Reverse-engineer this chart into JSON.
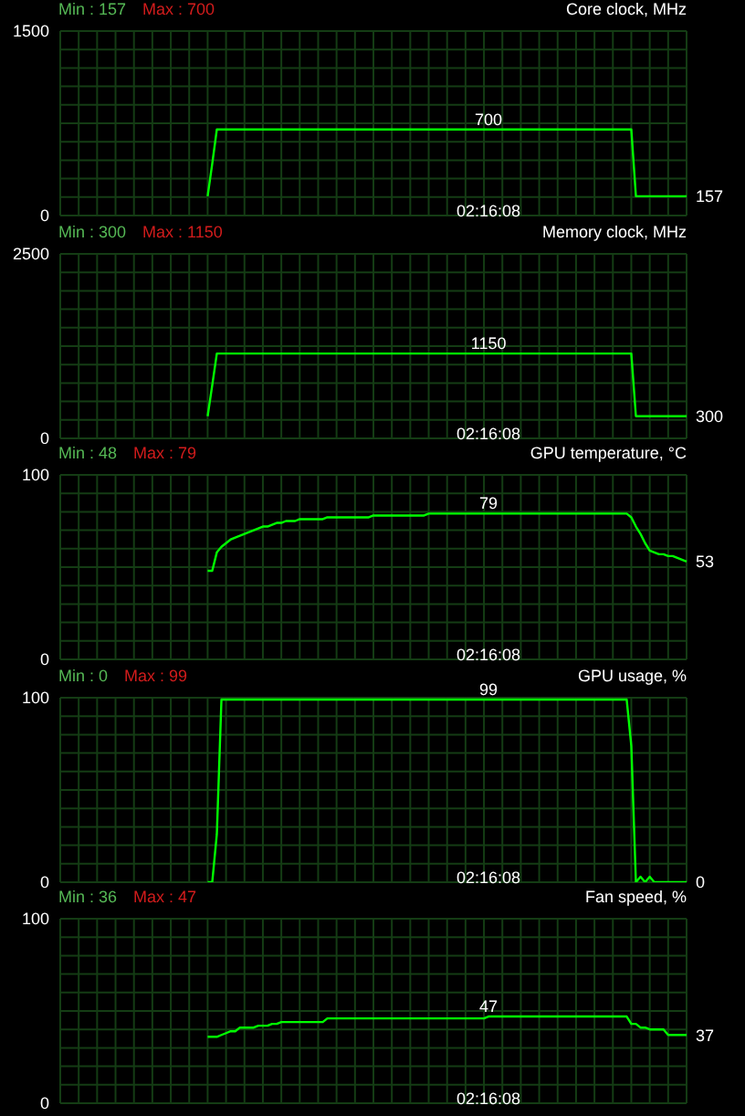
{
  "chart_data": [
    {
      "type": "line",
      "title": "Core clock, MHz",
      "annotations": [
        "Min : 157",
        "Max : 700"
      ],
      "categories": [
        null,
        null,
        null,
        null,
        null,
        null,
        null,
        null,
        null,
        null,
        null,
        null,
        null,
        null,
        null,
        null,
        null,
        null,
        null,
        null,
        null,
        null,
        null,
        null,
        null,
        null,
        null,
        null,
        null,
        null,
        null,
        null,
        null,
        null,
        null,
        null,
        null,
        null,
        null,
        null,
        null,
        null,
        null,
        null,
        null,
        null,
        null,
        null,
        null,
        null,
        null,
        null,
        null,
        null,
        null,
        null,
        null,
        null,
        null,
        null,
        null,
        null,
        null,
        null,
        null,
        null,
        null,
        null,
        null,
        null,
        null,
        null,
        null,
        null,
        null,
        null,
        null,
        null,
        null,
        null,
        null,
        null,
        null,
        null,
        null,
        null,
        null,
        null,
        null,
        null,
        null,
        null,
        null,
        "02:16:08",
        null,
        null,
        null,
        null,
        null,
        null,
        null,
        null,
        null,
        null,
        null,
        null,
        null,
        null,
        null,
        null,
        null,
        null,
        null,
        null,
        null,
        null,
        null,
        null,
        null,
        null,
        null,
        null,
        null,
        null,
        null,
        null,
        null,
        null,
        null,
        null,
        null,
        null,
        null,
        null,
        null,
        null,
        null
      ],
      "series": [
        {
          "color": "#00ff00",
          "values": [
            null,
            null,
            null,
            null,
            null,
            null,
            null,
            null,
            null,
            null,
            null,
            null,
            null,
            null,
            null,
            null,
            null,
            null,
            null,
            null,
            null,
            null,
            null,
            null,
            null,
            null,
            null,
            null,
            null,
            null,
            null,
            null,
            157,
            420,
            700,
            700,
            700,
            700,
            700,
            700,
            700,
            700,
            700,
            700,
            700,
            700,
            700,
            700,
            700,
            700,
            700,
            700,
            700,
            700,
            700,
            700,
            700,
            700,
            700,
            700,
            700,
            700,
            700,
            700,
            700,
            700,
            700,
            700,
            700,
            700,
            700,
            700,
            700,
            700,
            700,
            700,
            700,
            700,
            700,
            700,
            700,
            700,
            700,
            700,
            700,
            700,
            700,
            700,
            700,
            700,
            700,
            700,
            700,
            700,
            700,
            700,
            700,
            700,
            700,
            700,
            700,
            700,
            700,
            700,
            700,
            700,
            700,
            700,
            700,
            700,
            700,
            700,
            700,
            700,
            700,
            700,
            700,
            700,
            700,
            700,
            700,
            700,
            700,
            700,
            700,
            157,
            157,
            157,
            157,
            157,
            157,
            157,
            157,
            157,
            157,
            157,
            157
          ],
          "value_labels": [
            null,
            null,
            null,
            null,
            null,
            null,
            null,
            null,
            null,
            null,
            null,
            null,
            null,
            null,
            null,
            null,
            null,
            null,
            null,
            null,
            null,
            null,
            null,
            null,
            null,
            null,
            null,
            null,
            null,
            null,
            null,
            null,
            null,
            null,
            null,
            null,
            null,
            null,
            null,
            null,
            null,
            null,
            null,
            null,
            null,
            null,
            null,
            null,
            null,
            null,
            null,
            null,
            null,
            null,
            null,
            null,
            null,
            null,
            null,
            null,
            null,
            null,
            null,
            null,
            null,
            null,
            null,
            null,
            null,
            null,
            null,
            null,
            null,
            null,
            null,
            null,
            null,
            null,
            null,
            null,
            null,
            null,
            null,
            null,
            null,
            null,
            null,
            null,
            null,
            null,
            null,
            null,
            null,
            "700",
            null,
            null,
            null,
            null,
            null,
            null,
            null,
            null,
            null,
            null,
            null,
            null,
            null,
            null,
            null,
            null,
            null,
            null,
            null,
            null,
            null,
            null,
            null,
            null,
            null,
            null,
            null,
            null,
            null,
            null,
            null,
            null,
            null,
            null,
            null,
            null,
            null,
            null,
            null,
            null,
            null,
            null,
            "157"
          ]
        }
      ],
      "ylim": [
        0,
        1500
      ],
      "yticks": [
        0,
        {
          "value": 150,
          "label": null
        },
        {
          "value": 300,
          "label": null
        },
        {
          "value": 450,
          "label": null
        },
        {
          "value": 600,
          "label": null
        },
        {
          "value": 750,
          "label": null
        },
        {
          "value": 900,
          "label": null
        },
        {
          "value": 1050,
          "label": null
        },
        {
          "value": 1200,
          "label": null
        },
        {
          "value": 1350,
          "label": null
        },
        1500
      ],
      "grid": true
    },
    {
      "type": "line",
      "title": "Memory clock, MHz",
      "annotations": [
        "Min : 300",
        "Max : 1150"
      ],
      "categories": [
        null,
        null,
        null,
        null,
        null,
        null,
        null,
        null,
        null,
        null,
        null,
        null,
        null,
        null,
        null,
        null,
        null,
        null,
        null,
        null,
        null,
        null,
        null,
        null,
        null,
        null,
        null,
        null,
        null,
        null,
        null,
        null,
        null,
        null,
        null,
        null,
        null,
        null,
        null,
        null,
        null,
        null,
        null,
        null,
        null,
        null,
        null,
        null,
        null,
        null,
        null,
        null,
        null,
        null,
        null,
        null,
        null,
        null,
        null,
        null,
        null,
        null,
        null,
        null,
        null,
        null,
        null,
        null,
        null,
        null,
        null,
        null,
        null,
        null,
        null,
        null,
        null,
        null,
        null,
        null,
        null,
        null,
        null,
        null,
        null,
        null,
        null,
        null,
        null,
        null,
        null,
        null,
        null,
        "02:16:08",
        null,
        null,
        null,
        null,
        null,
        null,
        null,
        null,
        null,
        null,
        null,
        null,
        null,
        null,
        null,
        null,
        null,
        null,
        null,
        null,
        null,
        null,
        null,
        null,
        null,
        null,
        null,
        null,
        null,
        null,
        null,
        null,
        null,
        null,
        null,
        null,
        null,
        null,
        null,
        null,
        null,
        null,
        null
      ],
      "series": [
        {
          "color": "#00ff00",
          "values": [
            null,
            null,
            null,
            null,
            null,
            null,
            null,
            null,
            null,
            null,
            null,
            null,
            null,
            null,
            null,
            null,
            null,
            null,
            null,
            null,
            null,
            null,
            null,
            null,
            null,
            null,
            null,
            null,
            null,
            null,
            null,
            null,
            300,
            720,
            1150,
            1150,
            1150,
            1150,
            1150,
            1150,
            1150,
            1150,
            1150,
            1150,
            1150,
            1150,
            1150,
            1150,
            1150,
            1150,
            1150,
            1150,
            1150,
            1150,
            1150,
            1150,
            1150,
            1150,
            1150,
            1150,
            1150,
            1150,
            1150,
            1150,
            1150,
            1150,
            1150,
            1150,
            1150,
            1150,
            1150,
            1150,
            1150,
            1150,
            1150,
            1150,
            1150,
            1150,
            1150,
            1150,
            1150,
            1150,
            1150,
            1150,
            1150,
            1150,
            1150,
            1150,
            1150,
            1150,
            1150,
            1150,
            1150,
            1150,
            1150,
            1150,
            1150,
            1150,
            1150,
            1150,
            1150,
            1150,
            1150,
            1150,
            1150,
            1150,
            1150,
            1150,
            1150,
            1150,
            1150,
            1150,
            1150,
            1150,
            1150,
            1150,
            1150,
            1150,
            1150,
            1150,
            1150,
            1150,
            1150,
            1150,
            1150,
            300,
            300,
            300,
            300,
            300,
            300,
            300,
            300,
            300,
            300,
            300,
            300
          ],
          "value_labels": [
            null,
            null,
            null,
            null,
            null,
            null,
            null,
            null,
            null,
            null,
            null,
            null,
            null,
            null,
            null,
            null,
            null,
            null,
            null,
            null,
            null,
            null,
            null,
            null,
            null,
            null,
            null,
            null,
            null,
            null,
            null,
            null,
            null,
            null,
            null,
            null,
            null,
            null,
            null,
            null,
            null,
            null,
            null,
            null,
            null,
            null,
            null,
            null,
            null,
            null,
            null,
            null,
            null,
            null,
            null,
            null,
            null,
            null,
            null,
            null,
            null,
            null,
            null,
            null,
            null,
            null,
            null,
            null,
            null,
            null,
            null,
            null,
            null,
            null,
            null,
            null,
            null,
            null,
            null,
            null,
            null,
            null,
            null,
            null,
            null,
            null,
            null,
            null,
            null,
            null,
            null,
            null,
            null,
            "1150",
            null,
            null,
            null,
            null,
            null,
            null,
            null,
            null,
            null,
            null,
            null,
            null,
            null,
            null,
            null,
            null,
            null,
            null,
            null,
            null,
            null,
            null,
            null,
            null,
            null,
            null,
            null,
            null,
            null,
            null,
            null,
            null,
            null,
            null,
            null,
            null,
            null,
            null,
            null,
            null,
            null,
            null,
            "300"
          ]
        }
      ],
      "ylim": [
        0,
        2500
      ],
      "yticks": [
        0,
        {
          "value": 250,
          "label": null
        },
        {
          "value": 500,
          "label": null
        },
        {
          "value": 750,
          "label": null
        },
        {
          "value": 1000,
          "label": null
        },
        {
          "value": 1250,
          "label": null
        },
        {
          "value": 1500,
          "label": null
        },
        {
          "value": 1750,
          "label": null
        },
        {
          "value": 2000,
          "label": null
        },
        {
          "value": 2250,
          "label": null
        },
        2500
      ],
      "grid": true
    },
    {
      "type": "line",
      "title": "GPU temperature, °C",
      "annotations": [
        "Min : 48",
        "Max : 79"
      ],
      "categories": [
        null,
        null,
        null,
        null,
        null,
        null,
        null,
        null,
        null,
        null,
        null,
        null,
        null,
        null,
        null,
        null,
        null,
        null,
        null,
        null,
        null,
        null,
        null,
        null,
        null,
        null,
        null,
        null,
        null,
        null,
        null,
        null,
        null,
        null,
        null,
        null,
        null,
        null,
        null,
        null,
        null,
        null,
        null,
        null,
        null,
        null,
        null,
        null,
        null,
        null,
        null,
        null,
        null,
        null,
        null,
        null,
        null,
        null,
        null,
        null,
        null,
        null,
        null,
        null,
        null,
        null,
        null,
        null,
        null,
        null,
        null,
        null,
        null,
        null,
        null,
        null,
        null,
        null,
        null,
        null,
        null,
        null,
        null,
        null,
        null,
        null,
        null,
        null,
        null,
        null,
        null,
        null,
        null,
        "02:16:08",
        null,
        null,
        null,
        null,
        null,
        null,
        null,
        null,
        null,
        null,
        null,
        null,
        null,
        null,
        null,
        null,
        null,
        null,
        null,
        null,
        null,
        null,
        null,
        null,
        null,
        null,
        null,
        null,
        null,
        null,
        null,
        null,
        null,
        null,
        null,
        null,
        null,
        null,
        null,
        null,
        null,
        null,
        null
      ],
      "series": [
        {
          "color": "#00ff00",
          "values": [
            null,
            null,
            null,
            null,
            null,
            null,
            null,
            null,
            null,
            null,
            null,
            null,
            null,
            null,
            null,
            null,
            null,
            null,
            null,
            null,
            null,
            null,
            null,
            null,
            null,
            null,
            null,
            null,
            null,
            null,
            null,
            null,
            48,
            48,
            58,
            61,
            63,
            65,
            66,
            67,
            68,
            69,
            70,
            71,
            72,
            72,
            73,
            74,
            74,
            75,
            75,
            75,
            76,
            76,
            76,
            76,
            76,
            76,
            77,
            77,
            77,
            77,
            77,
            77,
            77,
            77,
            77,
            77,
            78,
            78,
            78,
            78,
            78,
            78,
            78,
            78,
            78,
            78,
            78,
            78,
            79,
            79,
            79,
            79,
            79,
            79,
            79,
            79,
            79,
            79,
            79,
            79,
            79,
            79,
            79,
            79,
            79,
            79,
            79,
            79,
            79,
            79,
            79,
            79,
            79,
            79,
            79,
            79,
            79,
            79,
            79,
            79,
            79,
            79,
            79,
            79,
            79,
            79,
            79,
            79,
            79,
            79,
            79,
            79,
            77,
            72,
            68,
            63,
            59,
            58,
            57,
            57,
            56,
            56,
            55,
            54,
            53
          ],
          "value_labels": [
            null,
            null,
            null,
            null,
            null,
            null,
            null,
            null,
            null,
            null,
            null,
            null,
            null,
            null,
            null,
            null,
            null,
            null,
            null,
            null,
            null,
            null,
            null,
            null,
            null,
            null,
            null,
            null,
            null,
            null,
            null,
            null,
            null,
            null,
            null,
            null,
            null,
            null,
            null,
            null,
            null,
            null,
            null,
            null,
            null,
            null,
            null,
            null,
            null,
            null,
            null,
            null,
            null,
            null,
            null,
            null,
            null,
            null,
            null,
            null,
            null,
            null,
            null,
            null,
            null,
            null,
            null,
            null,
            null,
            null,
            null,
            null,
            null,
            null,
            null,
            null,
            null,
            null,
            null,
            null,
            null,
            null,
            null,
            null,
            null,
            null,
            null,
            null,
            null,
            null,
            null,
            null,
            null,
            "79",
            null,
            null,
            null,
            null,
            null,
            null,
            null,
            null,
            null,
            null,
            null,
            null,
            null,
            null,
            null,
            null,
            null,
            null,
            null,
            null,
            null,
            null,
            null,
            null,
            null,
            null,
            null,
            null,
            null,
            null,
            null,
            null,
            null,
            null,
            null,
            null,
            null,
            null,
            null,
            null,
            null,
            null,
            "53"
          ]
        }
      ],
      "ylim": [
        0,
        100
      ],
      "yticks": [
        0,
        {
          "value": 10,
          "label": null
        },
        {
          "value": 20,
          "label": null
        },
        {
          "value": 30,
          "label": null
        },
        {
          "value": 40,
          "label": null
        },
        {
          "value": 50,
          "label": null
        },
        {
          "value": 60,
          "label": null
        },
        {
          "value": 70,
          "label": null
        },
        {
          "value": 80,
          "label": null
        },
        {
          "value": 90,
          "label": null
        },
        100
      ],
      "grid": true
    },
    {
      "type": "line",
      "title": "GPU usage, %",
      "annotations": [
        "Min : 0",
        "Max : 99"
      ],
      "categories": [
        null,
        null,
        null,
        null,
        null,
        null,
        null,
        null,
        null,
        null,
        null,
        null,
        null,
        null,
        null,
        null,
        null,
        null,
        null,
        null,
        null,
        null,
        null,
        null,
        null,
        null,
        null,
        null,
        null,
        null,
        null,
        null,
        null,
        null,
        null,
        null,
        null,
        null,
        null,
        null,
        null,
        null,
        null,
        null,
        null,
        null,
        null,
        null,
        null,
        null,
        null,
        null,
        null,
        null,
        null,
        null,
        null,
        null,
        null,
        null,
        null,
        null,
        null,
        null,
        null,
        null,
        null,
        null,
        null,
        null,
        null,
        null,
        null,
        null,
        null,
        null,
        null,
        null,
        null,
        null,
        null,
        null,
        null,
        null,
        null,
        null,
        null,
        null,
        null,
        null,
        null,
        null,
        null,
        "02:16:08",
        null,
        null,
        null,
        null,
        null,
        null,
        null,
        null,
        null,
        null,
        null,
        null,
        null,
        null,
        null,
        null,
        null,
        null,
        null,
        null,
        null,
        null,
        null,
        null,
        null,
        null,
        null,
        null,
        null,
        null,
        null,
        null,
        null,
        null,
        null,
        null,
        null,
        null,
        null,
        null,
        null,
        null,
        null
      ],
      "series": [
        {
          "color": "#00ff00",
          "values": [
            null,
            null,
            null,
            null,
            null,
            null,
            null,
            null,
            null,
            null,
            null,
            null,
            null,
            null,
            null,
            null,
            null,
            null,
            null,
            null,
            null,
            null,
            null,
            null,
            null,
            null,
            null,
            null,
            null,
            null,
            null,
            null,
            0,
            0,
            26,
            99,
            99,
            99,
            99,
            99,
            99,
            99,
            99,
            99,
            99,
            99,
            99,
            99,
            99,
            99,
            99,
            99,
            99,
            99,
            99,
            99,
            99,
            99,
            99,
            99,
            99,
            99,
            99,
            99,
            99,
            99,
            99,
            99,
            99,
            99,
            99,
            99,
            99,
            99,
            99,
            99,
            99,
            99,
            99,
            99,
            99,
            99,
            99,
            99,
            99,
            99,
            99,
            99,
            99,
            99,
            99,
            99,
            99,
            99,
            99,
            99,
            99,
            99,
            99,
            99,
            99,
            99,
            99,
            99,
            99,
            99,
            99,
            99,
            99,
            99,
            99,
            99,
            99,
            99,
            99,
            99,
            99,
            99,
            99,
            99,
            99,
            99,
            99,
            99,
            74,
            0,
            3,
            0,
            3,
            0,
            0,
            0,
            0,
            0,
            0,
            0,
            0
          ],
          "value_labels": [
            null,
            null,
            null,
            null,
            null,
            null,
            null,
            null,
            null,
            null,
            null,
            null,
            null,
            null,
            null,
            null,
            null,
            null,
            null,
            null,
            null,
            null,
            null,
            null,
            null,
            null,
            null,
            null,
            null,
            null,
            null,
            null,
            null,
            null,
            null,
            null,
            null,
            null,
            null,
            null,
            null,
            null,
            null,
            null,
            null,
            null,
            null,
            null,
            null,
            null,
            null,
            null,
            null,
            null,
            null,
            null,
            null,
            null,
            null,
            null,
            null,
            null,
            null,
            null,
            null,
            null,
            null,
            null,
            null,
            null,
            null,
            null,
            null,
            null,
            null,
            null,
            null,
            null,
            null,
            null,
            null,
            null,
            null,
            null,
            null,
            null,
            null,
            null,
            null,
            null,
            null,
            null,
            null,
            "99",
            null,
            null,
            null,
            null,
            null,
            null,
            null,
            null,
            null,
            null,
            null,
            null,
            null,
            null,
            null,
            null,
            null,
            null,
            null,
            null,
            null,
            null,
            null,
            null,
            null,
            null,
            null,
            null,
            null,
            null,
            null,
            null,
            null,
            null,
            null,
            null,
            null,
            null,
            null,
            null,
            null,
            null,
            "0"
          ]
        }
      ],
      "ylim": [
        0,
        100
      ],
      "yticks": [
        0,
        {
          "value": 10,
          "label": null
        },
        {
          "value": 20,
          "label": null
        },
        {
          "value": 30,
          "label": null
        },
        {
          "value": 40,
          "label": null
        },
        {
          "value": 50,
          "label": null
        },
        {
          "value": 60,
          "label": null
        },
        {
          "value": 70,
          "label": null
        },
        {
          "value": 80,
          "label": null
        },
        {
          "value": 90,
          "label": null
        },
        100
      ],
      "grid": true
    },
    {
      "type": "line",
      "title": "Fan speed, %",
      "annotations": [
        "Min : 36",
        "Max : 47"
      ],
      "categories": [
        null,
        null,
        null,
        null,
        null,
        null,
        null,
        null,
        null,
        null,
        null,
        null,
        null,
        null,
        null,
        null,
        null,
        null,
        null,
        null,
        null,
        null,
        null,
        null,
        null,
        null,
        null,
        null,
        null,
        null,
        null,
        null,
        null,
        null,
        null,
        null,
        null,
        null,
        null,
        null,
        null,
        null,
        null,
        null,
        null,
        null,
        null,
        null,
        null,
        null,
        null,
        null,
        null,
        null,
        null,
        null,
        null,
        null,
        null,
        null,
        null,
        null,
        null,
        null,
        null,
        null,
        null,
        null,
        null,
        null,
        null,
        null,
        null,
        null,
        null,
        null,
        null,
        null,
        null,
        null,
        null,
        null,
        null,
        null,
        null,
        null,
        null,
        null,
        null,
        null,
        null,
        null,
        null,
        "02:16:08",
        null,
        null,
        null,
        null,
        null,
        null,
        null,
        null,
        null,
        null,
        null,
        null,
        null,
        null,
        null,
        null,
        null,
        null,
        null,
        null,
        null,
        null,
        null,
        null,
        null,
        null,
        null,
        null,
        null,
        null,
        null,
        null,
        null,
        null,
        null,
        null,
        null,
        null,
        null,
        null,
        null,
        null,
        null
      ],
      "series": [
        {
          "color": "#00ff00",
          "values": [
            null,
            null,
            null,
            null,
            null,
            null,
            null,
            null,
            null,
            null,
            null,
            null,
            null,
            null,
            null,
            null,
            null,
            null,
            null,
            null,
            null,
            null,
            null,
            null,
            null,
            null,
            null,
            null,
            null,
            null,
            null,
            null,
            36,
            36,
            36,
            37,
            38,
            39,
            39,
            41,
            41,
            41,
            41,
            42,
            42,
            42,
            43,
            43,
            44,
            44,
            44,
            44,
            44,
            44,
            44,
            44,
            44,
            44,
            46,
            46,
            46,
            46,
            46,
            46,
            46,
            46,
            46,
            46,
            46,
            46,
            46,
            46,
            46,
            46,
            46,
            46,
            46,
            46,
            46,
            46,
            46,
            46,
            46,
            46,
            46,
            46,
            46,
            46,
            46,
            46,
            46,
            46,
            46,
            47,
            47,
            47,
            47,
            47,
            47,
            47,
            47,
            47,
            47,
            47,
            47,
            47,
            47,
            47,
            47,
            47,
            47,
            47,
            47,
            47,
            47,
            47,
            47,
            47,
            47,
            47,
            47,
            47,
            47,
            47,
            43,
            43,
            41,
            41,
            40,
            40,
            40,
            40,
            37,
            37,
            37,
            37,
            37
          ],
          "value_labels": [
            null,
            null,
            null,
            null,
            null,
            null,
            null,
            null,
            null,
            null,
            null,
            null,
            null,
            null,
            null,
            null,
            null,
            null,
            null,
            null,
            null,
            null,
            null,
            null,
            null,
            null,
            null,
            null,
            null,
            null,
            null,
            null,
            null,
            null,
            null,
            null,
            null,
            null,
            null,
            null,
            null,
            null,
            null,
            null,
            null,
            null,
            null,
            null,
            null,
            null,
            null,
            null,
            null,
            null,
            null,
            null,
            null,
            null,
            null,
            null,
            null,
            null,
            null,
            null,
            null,
            null,
            null,
            null,
            null,
            null,
            null,
            null,
            null,
            null,
            null,
            null,
            null,
            null,
            null,
            null,
            null,
            null,
            null,
            null,
            null,
            null,
            null,
            null,
            null,
            null,
            null,
            null,
            null,
            "47",
            null,
            null,
            null,
            null,
            null,
            null,
            null,
            null,
            null,
            null,
            null,
            null,
            null,
            null,
            null,
            null,
            null,
            null,
            null,
            null,
            null,
            null,
            null,
            null,
            null,
            null,
            null,
            null,
            null,
            null,
            null,
            null,
            null,
            null,
            null,
            null,
            null,
            null,
            null,
            null,
            null,
            null,
            "37"
          ]
        }
      ],
      "ylim": [
        0,
        100
      ],
      "yticks": [
        0,
        {
          "value": 10,
          "label": null
        },
        {
          "value": 20,
          "label": null
        },
        {
          "value": 30,
          "label": null
        },
        {
          "value": 40,
          "label": null
        },
        {
          "value": 50,
          "label": null
        },
        {
          "value": 60,
          "label": null
        },
        {
          "value": 70,
          "label": null
        },
        {
          "value": 80,
          "label": null
        },
        {
          "value": 90,
          "label": null
        },
        100
      ],
      "grid": true
    }
  ]
}
